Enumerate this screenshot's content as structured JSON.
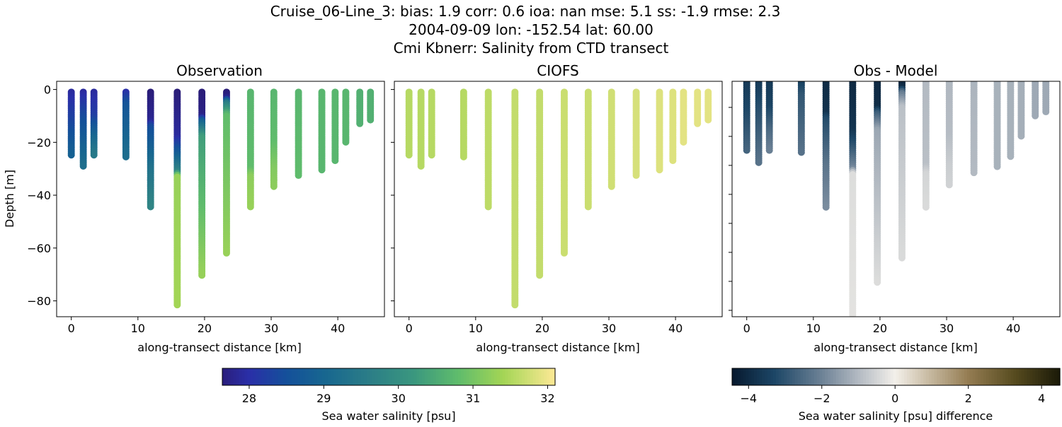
{
  "title_lines": [
    "Cruise_06-Line_3: bias: 1.9  corr: 0.6  ioa: nan  mse: 5.1  ss: -1.9  rmse: 2.3",
    "2004-09-09 lon: -152.54 lat: 60.00",
    "Cmi Kbnerr: Salinity from CTD transect"
  ],
  "chart_data": [
    {
      "type": "scatter",
      "title": "Observation",
      "xlabel": "along-transect distance [km]",
      "ylabel": "Depth [m]",
      "xlim": [
        -2.2,
        47
      ],
      "ylim": [
        -86,
        3.1
      ],
      "xticks": [
        "0",
        "10",
        "20",
        "30",
        "40"
      ],
      "yticks": [
        "0",
        "−20",
        "−40",
        "−60",
        "−80"
      ],
      "colormap": "haline",
      "profiles": [
        {
          "x": 0,
          "points": [
            [
              -1,
              27.9
            ],
            [
              -12,
              28.3
            ],
            [
              -25,
              28.9
            ]
          ]
        },
        {
          "x": 1.8,
          "points": [
            [
              -1,
              27.9
            ],
            [
              -10,
              28.4
            ],
            [
              -29,
              29.2
            ]
          ]
        },
        {
          "x": 3.4,
          "points": [
            [
              -1,
              27.9
            ],
            [
              -10,
              28.2
            ],
            [
              -18,
              29.0
            ],
            [
              -25,
              29.5
            ]
          ]
        },
        {
          "x": 8.2,
          "points": [
            [
              -1,
              28.0
            ],
            [
              -6,
              28.6
            ],
            [
              -26,
              29.2
            ]
          ]
        },
        {
          "x": 11.9,
          "points": [
            [
              -1,
              27.6
            ],
            [
              -12,
              27.8
            ],
            [
              -14,
              28.4
            ],
            [
              -30,
              29.3
            ],
            [
              -45,
              29.8
            ]
          ]
        },
        {
          "x": 15.9,
          "points": [
            [
              -1,
              27.6
            ],
            [
              -18,
              27.9
            ],
            [
              -24,
              28.7
            ],
            [
              -31,
              29.7
            ],
            [
              -33,
              31.3
            ],
            [
              -82,
              31.4
            ]
          ]
        },
        {
          "x": 19.6,
          "points": [
            [
              -1,
              27.6
            ],
            [
              -10,
              27.7
            ],
            [
              -12,
              28.8
            ],
            [
              -18,
              30.3
            ],
            [
              -71,
              31.3
            ]
          ]
        },
        {
          "x": 23.3,
          "points": [
            [
              -1,
              27.6
            ],
            [
              -3,
              27.7
            ],
            [
              -5,
              29.5
            ],
            [
              -10,
              30.8
            ],
            [
              -62,
              31.3
            ]
          ]
        },
        {
          "x": 26.9,
          "points": [
            [
              -1,
              30.7
            ],
            [
              -30,
              30.8
            ],
            [
              -33,
              31.2
            ],
            [
              -45,
              31.3
            ]
          ]
        },
        {
          "x": 30.4,
          "points": [
            [
              -1,
              30.7
            ],
            [
              -20,
              30.8
            ],
            [
              -30,
              31.1
            ],
            [
              -37,
              31.2
            ]
          ]
        },
        {
          "x": 34.1,
          "points": [
            [
              -1,
              30.7
            ],
            [
              -33,
              30.8
            ]
          ]
        },
        {
          "x": 37.6,
          "points": [
            [
              -1,
              30.7
            ],
            [
              -31,
              30.7
            ]
          ]
        },
        {
          "x": 39.6,
          "points": [
            [
              -1,
              30.7
            ],
            [
              -27,
              30.7
            ]
          ]
        },
        {
          "x": 41.2,
          "points": [
            [
              -1,
              30.7
            ],
            [
              -20,
              30.7
            ]
          ]
        },
        {
          "x": 43.3,
          "points": [
            [
              -1,
              30.6
            ],
            [
              -13,
              30.6
            ]
          ]
        },
        {
          "x": 44.9,
          "points": [
            [
              -1,
              30.6
            ],
            [
              -12,
              30.6
            ]
          ]
        }
      ]
    },
    {
      "type": "scatter",
      "title": "CIOFS",
      "xlabel": "along-transect distance [km]",
      "xlim": [
        -2.2,
        47
      ],
      "ylim": [
        -86,
        3.1
      ],
      "xticks": [
        "0",
        "10",
        "20",
        "30",
        "40"
      ],
      "colormap": "haline",
      "profiles": [
        {
          "x": 0,
          "points": [
            [
              -1,
              31.55
            ],
            [
              -25,
              31.55
            ]
          ]
        },
        {
          "x": 1.8,
          "points": [
            [
              -1,
              31.55
            ],
            [
              -29,
              31.55
            ]
          ]
        },
        {
          "x": 3.4,
          "points": [
            [
              -1,
              31.55
            ],
            [
              -25,
              31.55
            ]
          ]
        },
        {
          "x": 8.2,
          "points": [
            [
              -1,
              31.55
            ],
            [
              -26,
              31.55
            ]
          ]
        },
        {
          "x": 11.9,
          "points": [
            [
              -1,
              31.6
            ],
            [
              -45,
              31.6
            ]
          ]
        },
        {
          "x": 15.9,
          "points": [
            [
              -1,
              31.65
            ],
            [
              -82,
              31.65
            ]
          ]
        },
        {
          "x": 19.6,
          "points": [
            [
              -1,
              31.65
            ],
            [
              -71,
              31.65
            ]
          ]
        },
        {
          "x": 23.3,
          "points": [
            [
              -1,
              31.7
            ],
            [
              -62,
              31.7
            ]
          ]
        },
        {
          "x": 26.9,
          "points": [
            [
              -1,
              31.7
            ],
            [
              -45,
              31.7
            ]
          ]
        },
        {
          "x": 30.4,
          "points": [
            [
              -1,
              31.75
            ],
            [
              -37,
              31.75
            ]
          ]
        },
        {
          "x": 34.1,
          "points": [
            [
              -1,
              31.8
            ],
            [
              -33,
              31.8
            ]
          ]
        },
        {
          "x": 37.6,
          "points": [
            [
              -1,
              31.85
            ],
            [
              -31,
              31.85
            ]
          ]
        },
        {
          "x": 39.6,
          "points": [
            [
              -1,
              31.85
            ],
            [
              -27,
              31.85
            ]
          ]
        },
        {
          "x": 41.2,
          "points": [
            [
              -1,
              31.9
            ],
            [
              -20,
              31.9
            ]
          ]
        },
        {
          "x": 43.3,
          "points": [
            [
              -1,
              31.9
            ],
            [
              -13,
              31.9
            ]
          ]
        },
        {
          "x": 44.9,
          "points": [
            [
              -1,
              31.9
            ],
            [
              -12,
              31.9
            ]
          ]
        }
      ]
    },
    {
      "type": "scatter",
      "title": "Obs - Model",
      "xlabel": "along-transect distance [km]",
      "xlim": [
        -2.2,
        47
      ],
      "ylim": [
        -82.2,
        -1
      ],
      "xticks": [
        "0",
        "10",
        "20",
        "30",
        "40"
      ],
      "colormap": "diff",
      "note_values": "Observation minus CIOFS per point"
    }
  ],
  "colorbars": [
    {
      "label": "Sea water salinity [psu]",
      "range": [
        27.64,
        32.1
      ],
      "ticks": [
        "28",
        "29",
        "30",
        "31",
        "32"
      ],
      "tick_values": [
        28,
        29,
        30,
        31,
        32
      ],
      "colors": [
        [
          27.5,
          "#2a186c"
        ],
        [
          28.0,
          "#2a2fa8"
        ],
        [
          28.5,
          "#14509a"
        ],
        [
          29.0,
          "#176690"
        ],
        [
          29.6,
          "#2b7d87"
        ],
        [
          30.2,
          "#3a977f"
        ],
        [
          30.8,
          "#5fbc6c"
        ],
        [
          31.4,
          "#a3d555"
        ],
        [
          32.1,
          "#fde995"
        ]
      ]
    },
    {
      "label": "Sea water salinity [psu] difference",
      "range": [
        -4.45,
        4.5
      ],
      "ticks": [
        "−4",
        "−2",
        "0",
        "2",
        "4"
      ],
      "tick_values": [
        -4,
        -2,
        0,
        2,
        4
      ],
      "colors": [
        [
          -4.45,
          "#07192e"
        ],
        [
          -3.3,
          "#1c4666"
        ],
        [
          -2,
          "#6d8296"
        ],
        [
          -1,
          "#b3bac2"
        ],
        [
          0,
          "#f3f0ea"
        ],
        [
          1,
          "#c4b69c"
        ],
        [
          2,
          "#947c52"
        ],
        [
          3.3,
          "#554a1e"
        ],
        [
          4.5,
          "#1a1a08"
        ]
      ]
    }
  ]
}
